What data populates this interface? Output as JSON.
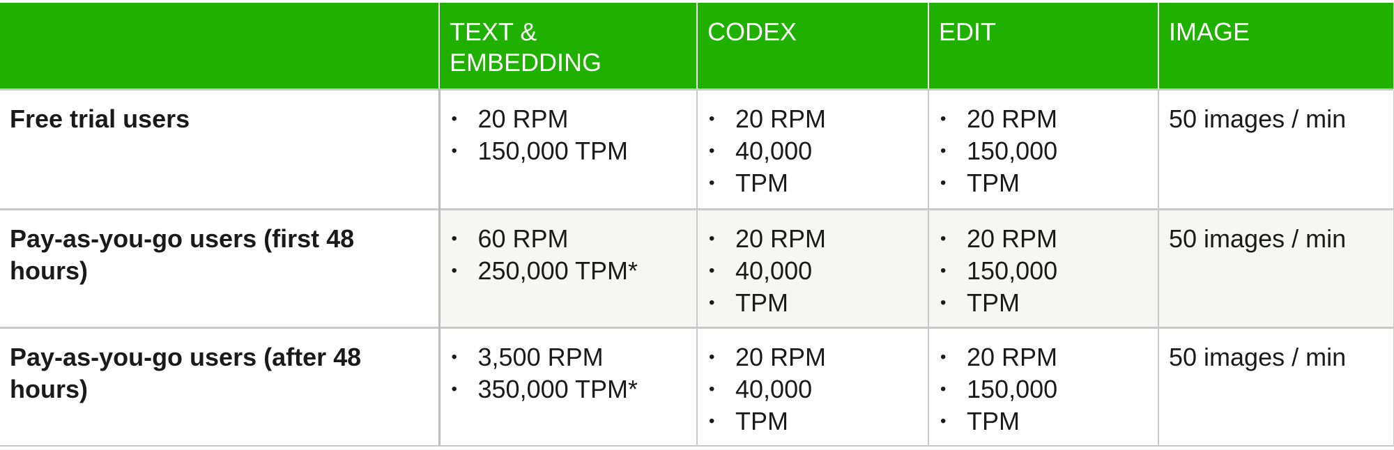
{
  "table": {
    "headers": [
      "",
      "TEXT & EMBEDDING",
      "CODEX",
      "EDIT",
      "IMAGE"
    ],
    "rows": [
      {
        "label": "Free trial users",
        "text_embedding": [
          "20 RPM",
          "150,000 TPM"
        ],
        "codex": [
          "20 RPM",
          "40,000",
          "TPM"
        ],
        "edit": [
          "20 RPM",
          "150,000",
          "TPM"
        ],
        "image": "50 images / min"
      },
      {
        "label": "Pay-as-you-go users (first 48 hours)",
        "text_embedding": [
          "60 RPM",
          "250,000 TPM*"
        ],
        "codex": [
          "20 RPM",
          "40,000",
          "TPM"
        ],
        "edit": [
          "20 RPM",
          "150,000",
          "TPM"
        ],
        "image": "50 images / min"
      },
      {
        "label": "Pay-as-you-go users (after 48 hours)",
        "text_embedding": [
          "3,500 RPM",
          "350,000 TPM*"
        ],
        "codex": [
          "20 RPM",
          "40,000",
          "TPM"
        ],
        "edit": [
          "20 RPM",
          "150,000",
          "TPM"
        ],
        "image": "50 images / min"
      }
    ]
  },
  "colors": {
    "header_background": "#20b000",
    "header_text": "#ffffff",
    "grid_line": "#c9c9c9",
    "alt_row_background": "#f6f6f4"
  }
}
